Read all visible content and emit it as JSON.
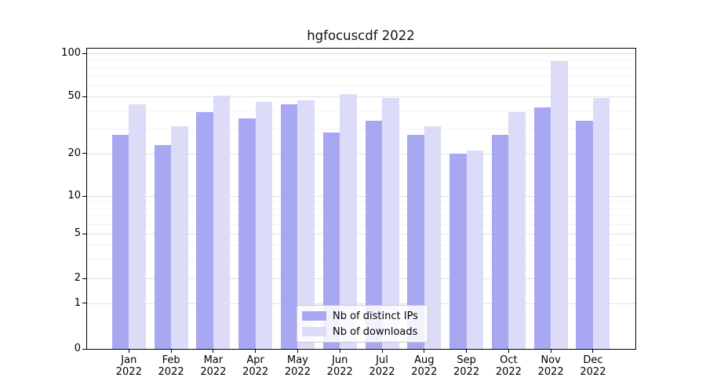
{
  "figure": {
    "title": "hgfocuscdf 2022"
  },
  "colors": {
    "ips_bar": "#a8a8f2",
    "downloads_bar": "#dcdcf8",
    "grid_major": "#e2e2e2",
    "grid_minor": "#f3f3f3",
    "axis": "#000000",
    "background": "#ffffff"
  },
  "legend": {
    "items": [
      {
        "label": "Nb of distinct IPs",
        "color_key": "ips_bar"
      },
      {
        "label": "Nb of downloads",
        "color_key": "downloads_bar"
      }
    ]
  },
  "chart_data": {
    "type": "bar",
    "title": "hgfocuscdf 2022",
    "categories": [
      "Jan 2022",
      "Feb 2022",
      "Mar 2022",
      "Apr 2022",
      "May 2022",
      "Jun 2022",
      "Jul 2022",
      "Aug 2022",
      "Sep 2022",
      "Oct 2022",
      "Nov 2022",
      "Dec 2022"
    ],
    "x_tick_months": [
      "Jan",
      "Feb",
      "Mar",
      "Apr",
      "May",
      "Jun",
      "Jul",
      "Aug",
      "Sep",
      "Oct",
      "Nov",
      "Dec"
    ],
    "x_tick_year": "2022",
    "series": [
      {
        "name": "Nb of distinct IPs",
        "color_key": "ips_bar",
        "values": [
          27,
          23,
          39,
          35,
          44,
          28,
          34,
          27,
          20,
          27,
          42,
          34
        ]
      },
      {
        "name": "Nb of downloads",
        "color_key": "downloads_bar",
        "values": [
          44,
          31,
          51,
          46,
          47,
          52,
          49,
          31,
          21,
          39,
          88,
          49
        ]
      }
    ],
    "y_axis": {
      "scale": "log-like",
      "tick_values": [
        0,
        1,
        2,
        5,
        10,
        20,
        50,
        100
      ],
      "minor_gridline_values": [
        3,
        4,
        6,
        7,
        8,
        9,
        30,
        40,
        60,
        70,
        80,
        90
      ],
      "range": [
        0,
        110
      ]
    },
    "xlabel": "",
    "ylabel": "",
    "grid": true,
    "legend_position": "lower center"
  }
}
